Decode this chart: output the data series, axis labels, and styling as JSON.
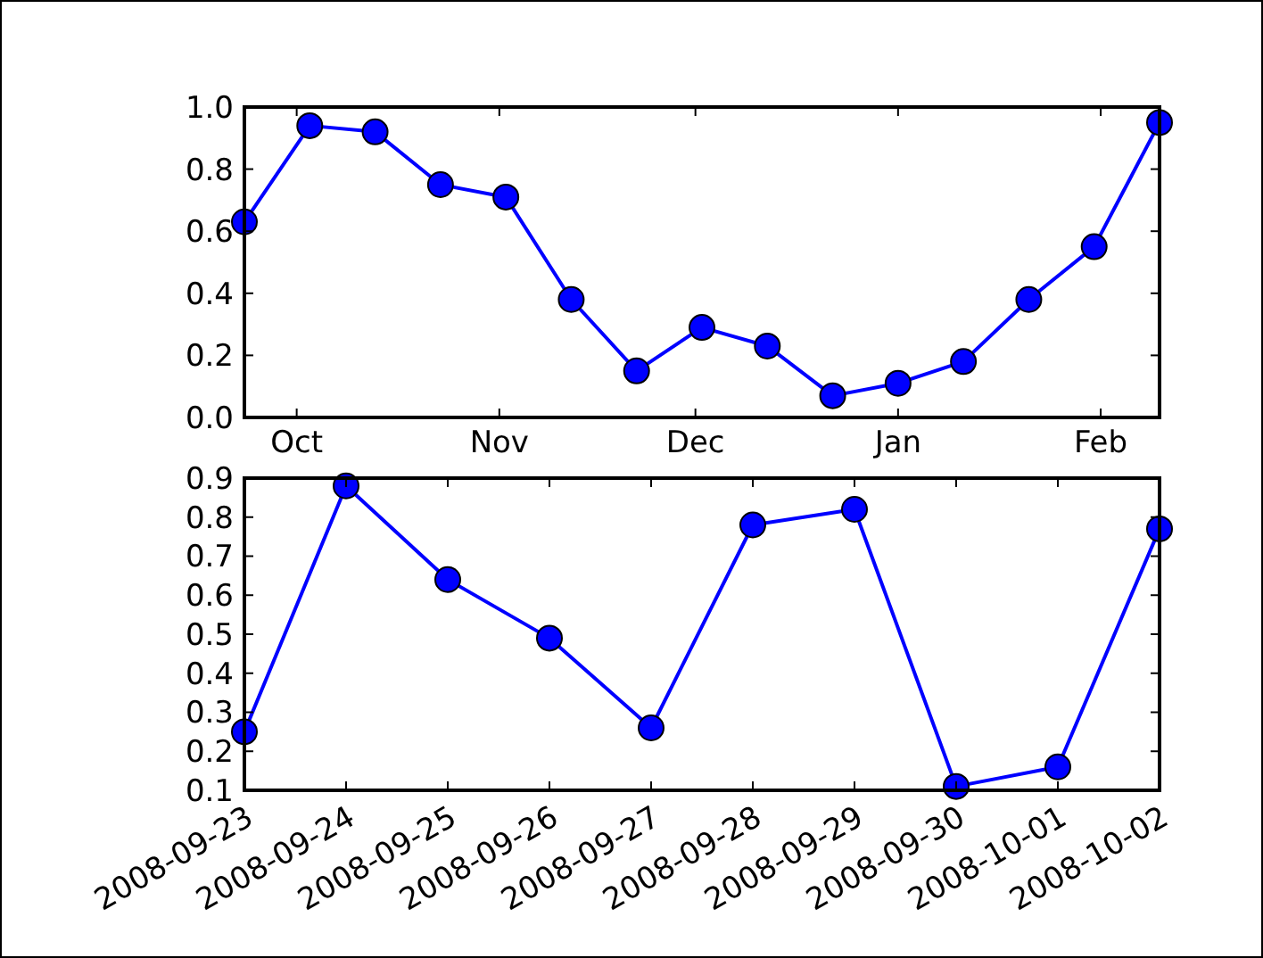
{
  "chart_data": [
    {
      "type": "line",
      "x": [
        "2008-09-23",
        "2008-10-03",
        "2008-10-13",
        "2008-10-23",
        "2008-11-02",
        "2008-11-12",
        "2008-11-22",
        "2008-12-02",
        "2008-12-12",
        "2008-12-22",
        "2009-01-01",
        "2009-01-11",
        "2009-01-21",
        "2009-01-31",
        "2009-02-10"
      ],
      "series": [
        {
          "color": "#0000ff",
          "values": [
            0.63,
            0.94,
            0.92,
            0.75,
            0.71,
            0.38,
            0.15,
            0.29,
            0.23,
            0.07,
            0.11,
            0.18,
            0.38,
            0.55,
            0.95
          ]
        }
      ],
      "xlim": [
        "2008-09-23",
        "2009-02-10"
      ],
      "xticks": [
        {
          "value": "2008-10-01",
          "label": "Oct"
        },
        {
          "value": "2008-11-01",
          "label": "Nov"
        },
        {
          "value": "2008-12-01",
          "label": "Dec"
        },
        {
          "value": "2009-01-01",
          "label": "Jan"
        },
        {
          "value": "2009-02-01",
          "label": "Feb"
        }
      ],
      "ylim": [
        0,
        1
      ],
      "yticks": [
        {
          "value": 0,
          "label": "0.0"
        },
        {
          "value": 0.2,
          "label": "0.2"
        },
        {
          "value": 0.4,
          "label": "0.4"
        },
        {
          "value": 0.6,
          "label": "0.6"
        },
        {
          "value": 0.8,
          "label": "0.8"
        },
        {
          "value": 1,
          "label": "1.0"
        }
      ],
      "marker": "circle",
      "line_style": "solid"
    },
    {
      "type": "line",
      "x": [
        "2008-09-23",
        "2008-09-24",
        "2008-09-25",
        "2008-09-26",
        "2008-09-27",
        "2008-09-28",
        "2008-09-29",
        "2008-09-30",
        "2008-10-01",
        "2008-10-02"
      ],
      "series": [
        {
          "color": "#0000ff",
          "values": [
            0.25,
            0.88,
            0.64,
            0.49,
            0.26,
            0.78,
            0.82,
            0.11,
            0.16,
            0.77
          ]
        }
      ],
      "xlim": [
        "2008-09-23",
        "2008-10-02"
      ],
      "xticks": [
        {
          "value": "2008-09-23",
          "label": "2008-09-23"
        },
        {
          "value": "2008-09-24",
          "label": "2008-09-24"
        },
        {
          "value": "2008-09-25",
          "label": "2008-09-25"
        },
        {
          "value": "2008-09-26",
          "label": "2008-09-26"
        },
        {
          "value": "2008-09-27",
          "label": "2008-09-27"
        },
        {
          "value": "2008-09-28",
          "label": "2008-09-28"
        },
        {
          "value": "2008-09-29",
          "label": "2008-09-29"
        },
        {
          "value": "2008-09-30",
          "label": "2008-09-30"
        },
        {
          "value": "2008-10-01",
          "label": "2008-10-01"
        },
        {
          "value": "2008-10-02",
          "label": "2008-10-02"
        }
      ],
      "ylim": [
        0.1,
        0.9
      ],
      "yticks": [
        0.1,
        0.2,
        0.3,
        0.4,
        0.5,
        0.6,
        0.7,
        0.8,
        0.9
      ],
      "marker": "circle",
      "line_style": "solid"
    }
  ]
}
